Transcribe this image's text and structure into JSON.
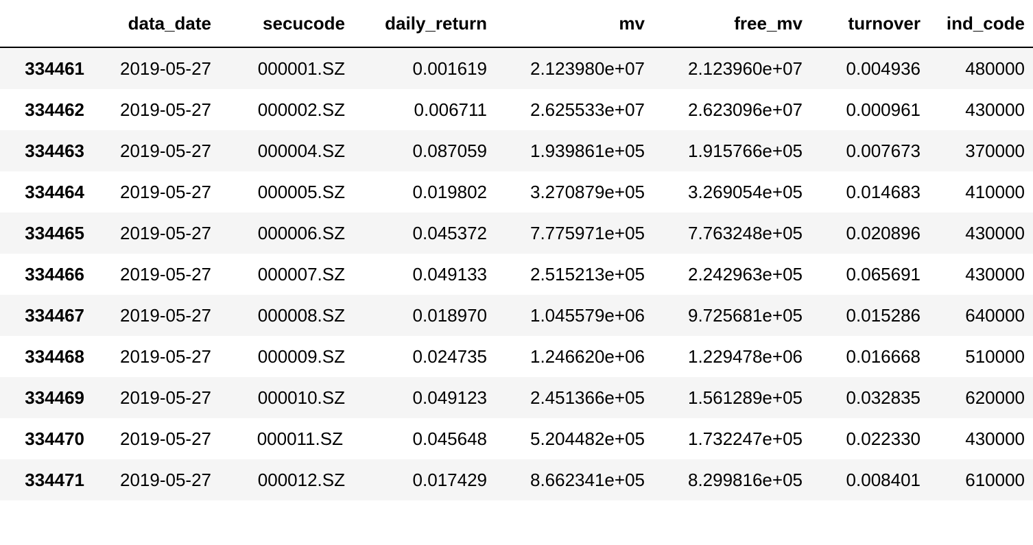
{
  "table": {
    "columns": [
      "",
      "data_date",
      "secucode",
      "daily_return",
      "mv",
      "free_mv",
      "turnover",
      "ind_code"
    ],
    "rows": [
      {
        "index": "334461",
        "data_date": "2019-05-27",
        "secucode": "000001.SZ",
        "daily_return": "0.001619",
        "mv": "2.123980e+07",
        "free_mv": "2.123960e+07",
        "turnover": "0.004936",
        "ind_code": "480000"
      },
      {
        "index": "334462",
        "data_date": "2019-05-27",
        "secucode": "000002.SZ",
        "daily_return": "0.006711",
        "mv": "2.625533e+07",
        "free_mv": "2.623096e+07",
        "turnover": "0.000961",
        "ind_code": "430000"
      },
      {
        "index": "334463",
        "data_date": "2019-05-27",
        "secucode": "000004.SZ",
        "daily_return": "0.087059",
        "mv": "1.939861e+05",
        "free_mv": "1.915766e+05",
        "turnover": "0.007673",
        "ind_code": "370000"
      },
      {
        "index": "334464",
        "data_date": "2019-05-27",
        "secucode": "000005.SZ",
        "daily_return": "0.019802",
        "mv": "3.270879e+05",
        "free_mv": "3.269054e+05",
        "turnover": "0.014683",
        "ind_code": "410000"
      },
      {
        "index": "334465",
        "data_date": "2019-05-27",
        "secucode": "000006.SZ",
        "daily_return": "0.045372",
        "mv": "7.775971e+05",
        "free_mv": "7.763248e+05",
        "turnover": "0.020896",
        "ind_code": "430000"
      },
      {
        "index": "334466",
        "data_date": "2019-05-27",
        "secucode": "000007.SZ",
        "daily_return": "0.049133",
        "mv": "2.515213e+05",
        "free_mv": "2.242963e+05",
        "turnover": "0.065691",
        "ind_code": "430000"
      },
      {
        "index": "334467",
        "data_date": "2019-05-27",
        "secucode": "000008.SZ",
        "daily_return": "0.018970",
        "mv": "1.045579e+06",
        "free_mv": "9.725681e+05",
        "turnover": "0.015286",
        "ind_code": "640000"
      },
      {
        "index": "334468",
        "data_date": "2019-05-27",
        "secucode": "000009.SZ",
        "daily_return": "0.024735",
        "mv": "1.246620e+06",
        "free_mv": "1.229478e+06",
        "turnover": "0.016668",
        "ind_code": "510000"
      },
      {
        "index": "334469",
        "data_date": "2019-05-27",
        "secucode": "000010.SZ",
        "daily_return": "0.049123",
        "mv": "2.451366e+05",
        "free_mv": "1.561289e+05",
        "turnover": "0.032835",
        "ind_code": "620000"
      },
      {
        "index": "334470",
        "data_date": "2019-05-27",
        "secucode": "000011.SZ",
        "daily_return": "0.045648",
        "mv": "5.204482e+05",
        "free_mv": "1.732247e+05",
        "turnover": "0.022330",
        "ind_code": "430000"
      },
      {
        "index": "334471",
        "data_date": "2019-05-27",
        "secucode": "000012.SZ",
        "daily_return": "0.017429",
        "mv": "8.662341e+05",
        "free_mv": "8.299816e+05",
        "turnover": "0.008401",
        "ind_code": "610000"
      }
    ]
  },
  "colors": {
    "stripe": "#f5f5f5",
    "header_rule": "#000000"
  }
}
